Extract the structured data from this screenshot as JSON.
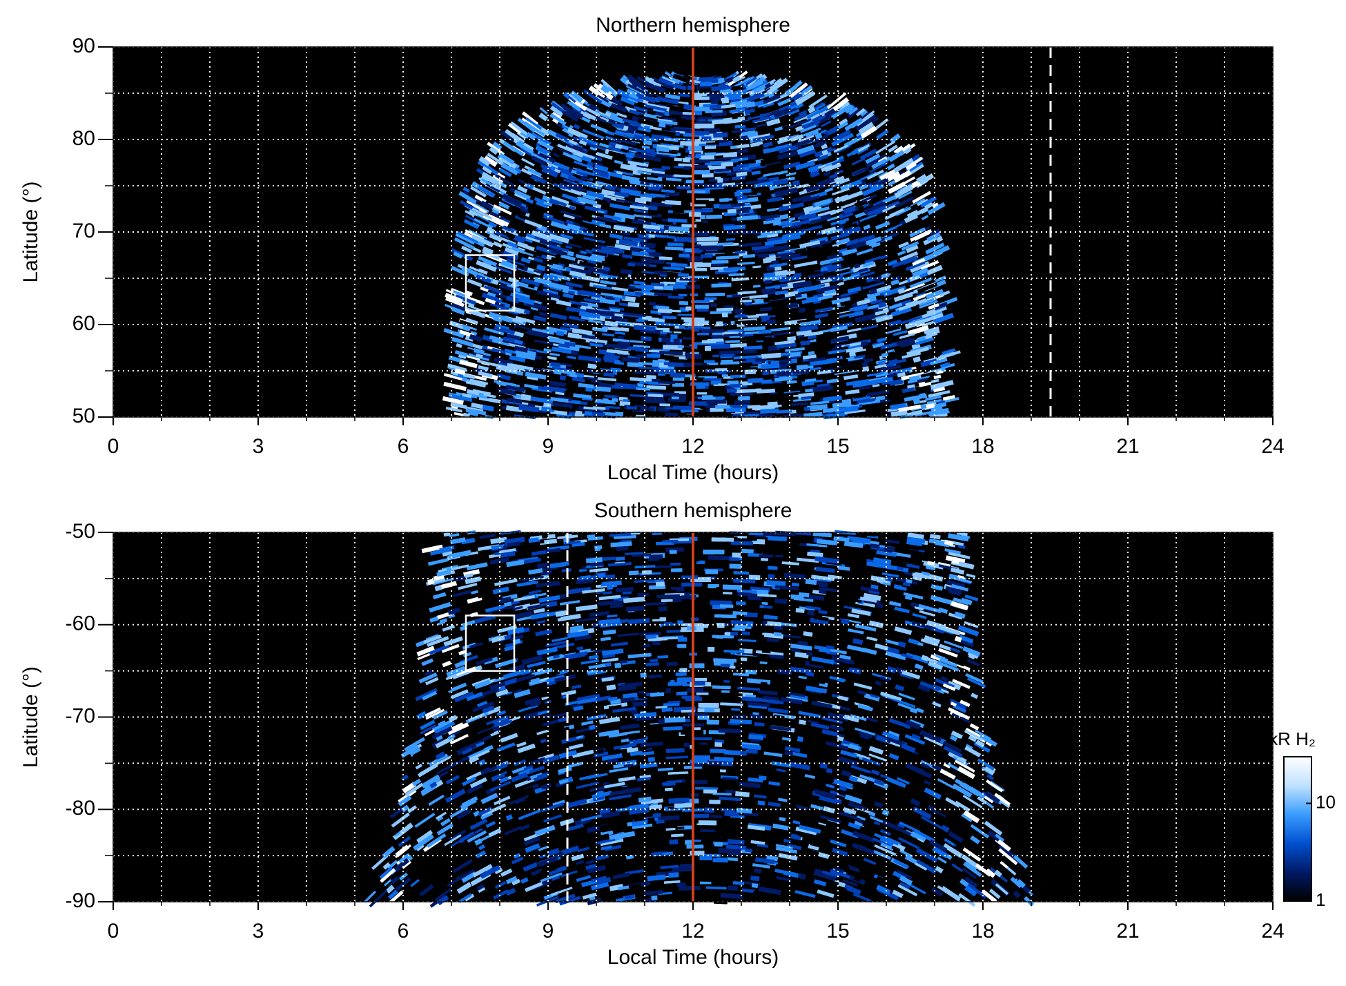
{
  "chart_data": [
    {
      "type": "heatmap",
      "title": "Northern hemisphere",
      "x_label": "Local Time (hours)",
      "y_label": "Latitude (°)",
      "xlim": [
        0,
        24
      ],
      "xticks": [
        0,
        3,
        6,
        9,
        12,
        15,
        18,
        21,
        24
      ],
      "xminorticks": [
        1,
        2,
        4,
        5,
        7,
        8,
        10,
        11,
        13,
        14,
        16,
        17,
        19,
        20,
        22,
        23
      ],
      "ylim": [
        50,
        90
      ],
      "yticks": [
        50,
        60,
        70,
        80,
        90
      ],
      "yminorticks": [
        55,
        65,
        75,
        85
      ],
      "grid": true,
      "vlines": [
        {
          "x": 12,
          "color": "#d0401a",
          "dash": false
        },
        {
          "x": 19.4,
          "color": "#ffffff",
          "dash": true
        }
      ],
      "box": {
        "xlim": [
          7.3,
          8.3
        ],
        "ylim": [
          61.5,
          67.5
        ]
      }
    },
    {
      "type": "heatmap",
      "title": "Southern hemisphere",
      "x_label": "Local Time (hours)",
      "y_label": "Latitude (°)",
      "xlim": [
        0,
        24
      ],
      "xticks": [
        0,
        3,
        6,
        9,
        12,
        15,
        18,
        21,
        24
      ],
      "xminorticks": [
        1,
        2,
        4,
        5,
        7,
        8,
        10,
        11,
        13,
        14,
        16,
        17,
        19,
        20,
        22,
        23
      ],
      "ylim": [
        -90,
        -50
      ],
      "yticks": [
        -90,
        -80,
        -70,
        -60,
        -50
      ],
      "yminorticks": [
        -85,
        -75,
        -65,
        -55
      ],
      "grid": true,
      "vlines": [
        {
          "x": 12,
          "color": "#d0401a",
          "dash": false
        },
        {
          "x": 9.4,
          "color": "#ffffff",
          "dash": true
        }
      ],
      "box": {
        "xlim": [
          7.3,
          8.3
        ],
        "ylim": [
          -65,
          -59
        ]
      },
      "colorbar": {
        "label": "kR H₂",
        "lim": [
          1,
          30
        ],
        "ticks": [
          1,
          10
        ],
        "log": true,
        "colors": [
          "#000000",
          "#001a66",
          "#0050d0",
          "#3a9cff",
          "#bfe2ff",
          "#ffffff"
        ]
      }
    }
  ]
}
